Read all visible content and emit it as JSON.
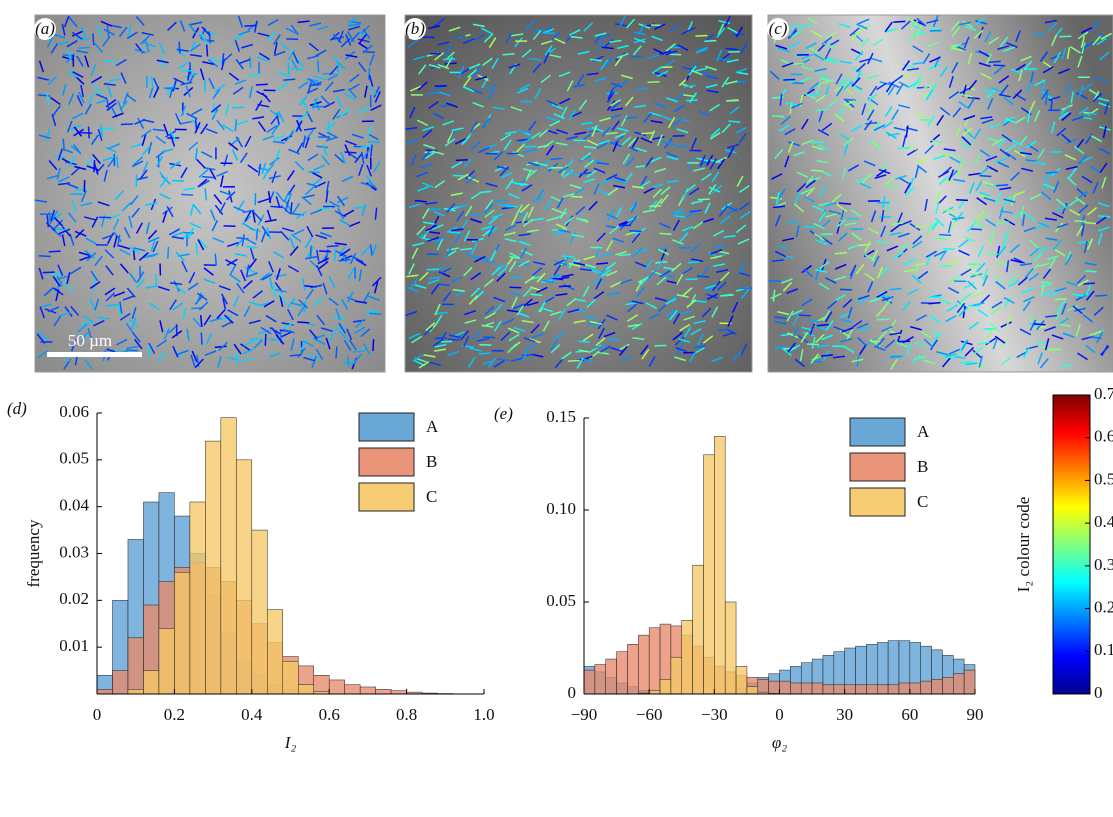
{
  "panels": [
    {
      "label": "(a)",
      "scale_bar": "50 µm"
    },
    {
      "label": "(b)"
    },
    {
      "label": "(c)"
    }
  ],
  "chart_data": [
    {
      "type": "histogram",
      "panel_label": "(d)",
      "xlabel": "I₂",
      "ylabel": "frequency",
      "bins": [
        0,
        0.04,
        0.08,
        0.12,
        0.16,
        0.2,
        0.24,
        0.28,
        0.32,
        0.36,
        0.4,
        0.44,
        0.48,
        0.52,
        0.56,
        0.6,
        0.64,
        0.68,
        0.72,
        0.76,
        0.8,
        0.84,
        0.88,
        0.92,
        0.96,
        1.0
      ],
      "series": [
        {
          "name": "A",
          "color": "#5a9fd4",
          "values": [
            0.004,
            0.02,
            0.033,
            0.041,
            0.043,
            0.038,
            0.03,
            0.021,
            0.013,
            0.007,
            0.004,
            0.002,
            0.001,
            0.0005,
            0,
            0,
            0,
            0,
            0,
            0,
            0,
            0,
            0,
            0,
            0
          ]
        },
        {
          "name": "B",
          "color": "#e8896a",
          "values": [
            0.001,
            0.005,
            0.012,
            0.019,
            0.024,
            0.027,
            0.028,
            0.027,
            0.024,
            0.02,
            0.015,
            0.011,
            0.008,
            0.006,
            0.004,
            0.003,
            0.002,
            0.0015,
            0.001,
            0.0007,
            0.0004,
            0.0002,
            0.0001,
            0,
            0
          ]
        },
        {
          "name": "C",
          "color": "#f5c865",
          "values": [
            0,
            0,
            0.001,
            0.005,
            0.014,
            0.026,
            0.041,
            0.054,
            0.059,
            0.05,
            0.035,
            0.018,
            0.007,
            0.002,
            0.0005,
            0,
            0,
            0,
            0,
            0,
            0,
            0,
            0,
            0,
            0
          ]
        }
      ],
      "xlim": [
        0,
        1.0
      ],
      "xticks": [
        0,
        0.2,
        0.4,
        0.6,
        0.8,
        {
          "value": 1.0,
          "label": "1.0"
        }
      ],
      "ylim": [
        0,
        0.06
      ],
      "yticks": [
        0.01,
        0.02,
        0.03,
        0.04,
        0.05,
        0.06
      ],
      "legend": "upper right"
    },
    {
      "type": "histogram",
      "panel_label": "(e)",
      "xlabel": "φ₂",
      "bins": [
        -90,
        -85,
        -80,
        -75,
        -70,
        -65,
        -60,
        -55,
        -50,
        -45,
        -40,
        -35,
        -30,
        -25,
        -20,
        -15,
        -10,
        -5,
        0,
        5,
        10,
        15,
        20,
        25,
        30,
        35,
        40,
        45,
        50,
        55,
        60,
        65,
        70,
        75,
        80,
        85,
        90
      ],
      "series": [
        {
          "name": "A",
          "color": "#5a9fd4",
          "values": [
            0.015,
            0.012,
            0.009,
            0.006,
            0.004,
            0.002,
            0.001,
            0.0005,
            0.0003,
            0.0002,
            0.0002,
            0.0003,
            0.0006,
            0.001,
            0.003,
            0.006,
            0.009,
            0.011,
            0.013,
            0.015,
            0.017,
            0.019,
            0.021,
            0.023,
            0.025,
            0.026,
            0.027,
            0.028,
            0.029,
            0.029,
            0.028,
            0.026,
            0.024,
            0.021,
            0.019,
            0.016
          ]
        },
        {
          "name": "B",
          "color": "#e8896a",
          "values": [
            0.013,
            0.016,
            0.019,
            0.023,
            0.027,
            0.032,
            0.036,
            0.038,
            0.037,
            0.032,
            0.026,
            0.02,
            0.015,
            0.012,
            0.01,
            0.009,
            0.008,
            0.007,
            0.007,
            0.006,
            0.006,
            0.006,
            0.005,
            0.005,
            0.005,
            0.005,
            0.005,
            0.005,
            0.005,
            0.006,
            0.006,
            0.007,
            0.008,
            0.009,
            0.011,
            0.013
          ]
        },
        {
          "name": "C",
          "color": "#f5c865",
          "values": [
            0,
            0,
            0,
            0,
            0,
            0.0005,
            0.002,
            0.008,
            0.02,
            0.04,
            0.07,
            0.13,
            0.14,
            0.05,
            0.015,
            0.004,
            0.001,
            0.0003,
            0,
            0,
            0,
            0,
            0,
            0,
            0,
            0,
            0,
            0,
            0,
            0,
            0,
            0,
            0,
            0,
            0,
            0
          ]
        }
      ],
      "xlim": [
        -90,
        90
      ],
      "xticks": [
        {
          "value": -90,
          "label": "−90"
        },
        {
          "value": -60,
          "label": "−60"
        },
        {
          "value": -30,
          "label": "−30"
        },
        0,
        30,
        60,
        90
      ],
      "ylim": [
        0,
        0.15
      ],
      "yticks": [
        0,
        0.05,
        {
          "value": 0.1,
          "label": "0.10"
        },
        0.15
      ],
      "legend": "upper right"
    },
    {
      "type": "colorbar",
      "label": "I₂ colour code",
      "colormap": "jet",
      "ylim": [
        0,
        0.7
      ],
      "yticks": [
        0,
        0.1,
        0.2,
        0.3,
        0.4,
        0.5,
        0.6,
        0.7
      ]
    }
  ]
}
